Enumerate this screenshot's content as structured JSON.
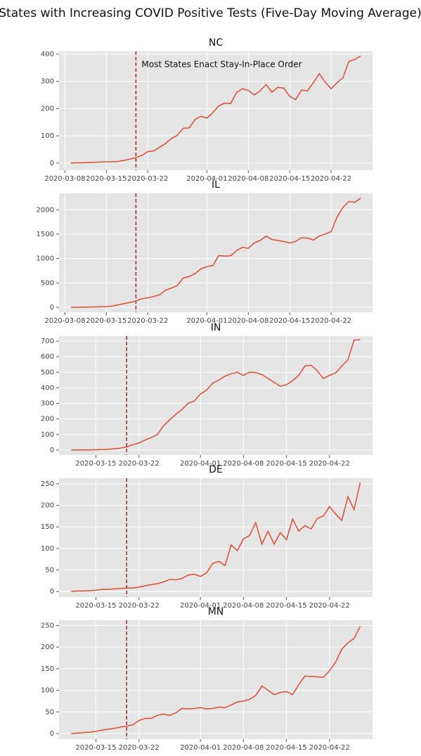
{
  "title": "States with Increasing COVID Positive Tests (Five-Day Moving Average)",
  "chart_data": [
    {
      "type": "line",
      "title": "NC",
      "annotation": "Most States Enact Stay-In-Place Order",
      "vline": "2020-03-20",
      "vline_color": "#b0302a",
      "color": "#e24a33",
      "grid": true,
      "x": [
        "2020-03-09",
        "2020-03-10",
        "2020-03-11",
        "2020-03-12",
        "2020-03-13",
        "2020-03-14",
        "2020-03-15",
        "2020-03-16",
        "2020-03-17",
        "2020-03-18",
        "2020-03-19",
        "2020-03-20",
        "2020-03-21",
        "2020-03-22",
        "2020-03-23",
        "2020-03-24",
        "2020-03-25",
        "2020-03-26",
        "2020-03-27",
        "2020-03-28",
        "2020-03-29",
        "2020-03-30",
        "2020-03-31",
        "2020-04-01",
        "2020-04-02",
        "2020-04-03",
        "2020-04-04",
        "2020-04-05",
        "2020-04-06",
        "2020-04-07",
        "2020-04-08",
        "2020-04-09",
        "2020-04-10",
        "2020-04-11",
        "2020-04-12",
        "2020-04-13",
        "2020-04-14",
        "2020-04-15",
        "2020-04-16",
        "2020-04-17",
        "2020-04-18",
        "2020-04-19",
        "2020-04-20",
        "2020-04-21",
        "2020-04-22",
        "2020-04-23",
        "2020-04-24",
        "2020-04-25",
        "2020-04-26",
        "2020-04-27"
      ],
      "values": [
        0,
        1,
        1,
        2,
        3,
        4,
        5,
        5,
        6,
        10,
        15,
        20,
        28,
        42,
        45,
        58,
        72,
        90,
        102,
        128,
        129,
        160,
        172,
        165,
        185,
        210,
        220,
        218,
        258,
        273,
        267,
        250,
        265,
        288,
        260,
        278,
        275,
        245,
        233,
        268,
        265,
        295,
        328,
        297,
        273,
        295,
        313,
        373,
        380,
        393
      ],
      "xlim": [
        "2020-03-07",
        "2020-04-29"
      ],
      "xticks": [
        "2020-03-08",
        "2020-03-15",
        "2020-03-22",
        "2020-04-01",
        "2020-04-08",
        "2020-04-15",
        "2020-04-22"
      ],
      "ylim": [
        -26,
        410
      ],
      "yticks": [
        0,
        100,
        200,
        300,
        400
      ]
    },
    {
      "type": "line",
      "title": "IL",
      "vline": "2020-03-20",
      "vline_color": "#b0302a",
      "color": "#e24a33",
      "grid": true,
      "x": [
        "2020-03-09",
        "2020-03-10",
        "2020-03-11",
        "2020-03-12",
        "2020-03-13",
        "2020-03-14",
        "2020-03-15",
        "2020-03-16",
        "2020-03-17",
        "2020-03-18",
        "2020-03-19",
        "2020-03-20",
        "2020-03-21",
        "2020-03-22",
        "2020-03-23",
        "2020-03-24",
        "2020-03-25",
        "2020-03-26",
        "2020-03-27",
        "2020-03-28",
        "2020-03-29",
        "2020-03-30",
        "2020-03-31",
        "2020-04-01",
        "2020-04-02",
        "2020-04-03",
        "2020-04-04",
        "2020-04-05",
        "2020-04-06",
        "2020-04-07",
        "2020-04-08",
        "2020-04-09",
        "2020-04-10",
        "2020-04-11",
        "2020-04-12",
        "2020-04-13",
        "2020-04-14",
        "2020-04-15",
        "2020-04-16",
        "2020-04-17",
        "2020-04-18",
        "2020-04-19",
        "2020-04-20",
        "2020-04-21",
        "2020-04-22",
        "2020-04-23",
        "2020-04-24",
        "2020-04-25",
        "2020-04-26",
        "2020-04-27"
      ],
      "values": [
        0,
        1,
        2,
        4,
        7,
        10,
        15,
        25,
        50,
        75,
        100,
        130,
        175,
        195,
        220,
        255,
        350,
        395,
        445,
        600,
        630,
        690,
        790,
        835,
        855,
        1060,
        1050,
        1055,
        1160,
        1230,
        1210,
        1320,
        1370,
        1460,
        1390,
        1370,
        1350,
        1320,
        1350,
        1430,
        1420,
        1380,
        1460,
        1500,
        1550,
        1850,
        2050,
        2170,
        2150,
        2240
      ],
      "xlim": [
        "2020-03-07",
        "2020-04-29"
      ],
      "xticks": [
        "2020-03-08",
        "2020-03-15",
        "2020-03-22",
        "2020-04-01",
        "2020-04-08",
        "2020-04-15",
        "2020-04-22"
      ],
      "ylim": [
        -102,
        2336
      ],
      "yticks": [
        0,
        500,
        1000,
        1500,
        2000
      ]
    },
    {
      "type": "line",
      "title": "IN",
      "vline": "2020-03-20",
      "vline_color": "#b0302a",
      "color": "#e24a33",
      "grid": true,
      "x": [
        "2020-03-11",
        "2020-03-12",
        "2020-03-13",
        "2020-03-14",
        "2020-03-15",
        "2020-03-16",
        "2020-03-17",
        "2020-03-18",
        "2020-03-19",
        "2020-03-20",
        "2020-03-21",
        "2020-03-22",
        "2020-03-23",
        "2020-03-24",
        "2020-03-25",
        "2020-03-26",
        "2020-03-27",
        "2020-03-28",
        "2020-03-29",
        "2020-03-30",
        "2020-03-31",
        "2020-04-01",
        "2020-04-02",
        "2020-04-03",
        "2020-04-04",
        "2020-04-05",
        "2020-04-06",
        "2020-04-07",
        "2020-04-08",
        "2020-04-09",
        "2020-04-10",
        "2020-04-11",
        "2020-04-12",
        "2020-04-13",
        "2020-04-14",
        "2020-04-15",
        "2020-04-16",
        "2020-04-17",
        "2020-04-18",
        "2020-04-19",
        "2020-04-20",
        "2020-04-21",
        "2020-04-22",
        "2020-04-23",
        "2020-04-24",
        "2020-04-25",
        "2020-04-26",
        "2020-04-27"
      ],
      "values": [
        0,
        0,
        1,
        1,
        2,
        3,
        5,
        8,
        12,
        20,
        35,
        45,
        65,
        80,
        100,
        155,
        195,
        230,
        260,
        300,
        315,
        360,
        385,
        430,
        450,
        475,
        490,
        500,
        480,
        500,
        498,
        485,
        460,
        435,
        410,
        420,
        445,
        480,
        540,
        545,
        510,
        460,
        480,
        495,
        540,
        580,
        705,
        710
      ],
      "xlim": [
        "2020-03-09",
        "2020-04-29"
      ],
      "xticks": [
        "2020-03-15",
        "2020-03-22",
        "2020-04-01",
        "2020-04-08",
        "2020-04-15",
        "2020-04-22"
      ],
      "ylim": [
        -32,
        732
      ],
      "yticks": [
        0,
        100,
        200,
        300,
        400,
        500,
        600,
        700
      ]
    },
    {
      "type": "line",
      "title": "DE",
      "vline": "2020-03-20",
      "vline_color": "#b0302a",
      "color": "#e24a33",
      "grid": true,
      "x": [
        "2020-03-11",
        "2020-03-12",
        "2020-03-13",
        "2020-03-14",
        "2020-03-15",
        "2020-03-16",
        "2020-03-17",
        "2020-03-18",
        "2020-03-19",
        "2020-03-20",
        "2020-03-21",
        "2020-03-22",
        "2020-03-23",
        "2020-03-24",
        "2020-03-25",
        "2020-03-26",
        "2020-03-27",
        "2020-03-28",
        "2020-03-29",
        "2020-03-30",
        "2020-03-31",
        "2020-04-01",
        "2020-04-02",
        "2020-04-03",
        "2020-04-04",
        "2020-04-05",
        "2020-04-06",
        "2020-04-07",
        "2020-04-08",
        "2020-04-09",
        "2020-04-10",
        "2020-04-11",
        "2020-04-12",
        "2020-04-13",
        "2020-04-14",
        "2020-04-15",
        "2020-04-16",
        "2020-04-17",
        "2020-04-18",
        "2020-04-19",
        "2020-04-20",
        "2020-04-21",
        "2020-04-22",
        "2020-04-23",
        "2020-04-24",
        "2020-04-25",
        "2020-04-26",
        "2020-04-27"
      ],
      "values": [
        0,
        1,
        1,
        2,
        3,
        5,
        5,
        6,
        7,
        8,
        8,
        10,
        13,
        16,
        18,
        22,
        28,
        27,
        30,
        38,
        40,
        35,
        43,
        65,
        70,
        60,
        108,
        95,
        122,
        130,
        160,
        110,
        140,
        110,
        137,
        120,
        168,
        140,
        153,
        145,
        170,
        175,
        197,
        180,
        165,
        220,
        190,
        253
      ],
      "xlim": [
        "2020-03-09",
        "2020-04-29"
      ],
      "xticks": [
        "2020-03-15",
        "2020-03-22",
        "2020-04-01",
        "2020-04-08",
        "2020-04-15",
        "2020-04-22"
      ],
      "ylim": [
        -13,
        263
      ],
      "yticks": [
        0,
        50,
        100,
        150,
        200,
        250
      ]
    },
    {
      "type": "line",
      "title": "MN",
      "vline": "2020-03-20",
      "vline_color": "#b0302a",
      "color": "#e24a33",
      "grid": true,
      "x": [
        "2020-03-11",
        "2020-03-12",
        "2020-03-13",
        "2020-03-14",
        "2020-03-15",
        "2020-03-16",
        "2020-03-17",
        "2020-03-18",
        "2020-03-19",
        "2020-03-20",
        "2020-03-21",
        "2020-03-22",
        "2020-03-23",
        "2020-03-24",
        "2020-03-25",
        "2020-03-26",
        "2020-03-27",
        "2020-03-28",
        "2020-03-29",
        "2020-03-30",
        "2020-03-31",
        "2020-04-01",
        "2020-04-02",
        "2020-04-03",
        "2020-04-04",
        "2020-04-05",
        "2020-04-06",
        "2020-04-07",
        "2020-04-08",
        "2020-04-09",
        "2020-04-10",
        "2020-04-11",
        "2020-04-12",
        "2020-04-13",
        "2020-04-14",
        "2020-04-15",
        "2020-04-16",
        "2020-04-17",
        "2020-04-18",
        "2020-04-19",
        "2020-04-20",
        "2020-04-21",
        "2020-04-22",
        "2020-04-23",
        "2020-04-24",
        "2020-04-25",
        "2020-04-26",
        "2020-04-27"
      ],
      "values": [
        0,
        1,
        2,
        3,
        5,
        8,
        10,
        12,
        15,
        17,
        20,
        30,
        35,
        35,
        42,
        45,
        42,
        48,
        58,
        57,
        58,
        60,
        57,
        58,
        61,
        60,
        66,
        73,
        75,
        79,
        88,
        110,
        100,
        90,
        95,
        97,
        90,
        113,
        133,
        132,
        131,
        130,
        145,
        165,
        195,
        210,
        220,
        248
      ],
      "xlim": [
        "2020-03-09",
        "2020-04-29"
      ],
      "xticks": [
        "2020-03-15",
        "2020-03-22",
        "2020-04-01",
        "2020-04-08",
        "2020-04-15",
        "2020-04-22"
      ],
      "ylim": [
        -13,
        262
      ],
      "yticks": [
        0,
        50,
        100,
        150,
        200,
        250
      ]
    }
  ]
}
